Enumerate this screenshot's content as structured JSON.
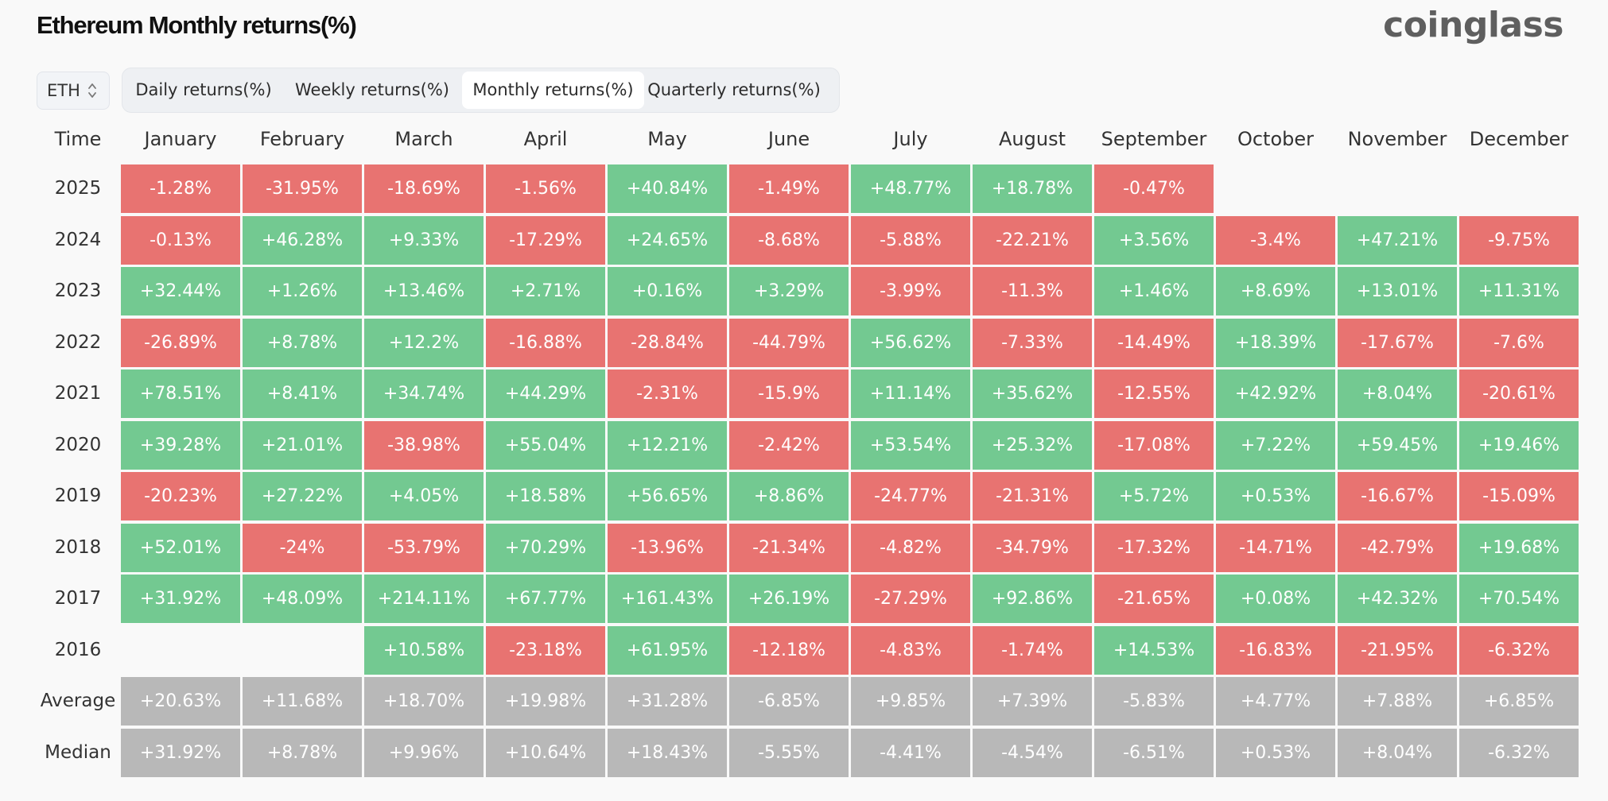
{
  "header": {
    "title": "Ethereum Monthly returns(%)",
    "brand": "coinglass"
  },
  "symbol_select": {
    "value": "ETH"
  },
  "tabs": [
    {
      "label": "Daily returns(%)",
      "active": false
    },
    {
      "label": "Weekly returns(%)",
      "active": false
    },
    {
      "label": "Monthly returns(%)",
      "active": true
    },
    {
      "label": "Quarterly returns(%)",
      "active": false
    }
  ],
  "colors": {
    "positive": "#73c991",
    "negative": "#e87371",
    "stat": "#b8b8b8"
  },
  "chart_data": {
    "type": "heatmap",
    "corner_label": "Time",
    "columns": [
      "January",
      "February",
      "March",
      "April",
      "May",
      "June",
      "July",
      "August",
      "September",
      "October",
      "November",
      "December"
    ],
    "rows": [
      {
        "label": "2025",
        "values": [
          "-1.28%",
          "-31.95%",
          "-18.69%",
          "-1.56%",
          "+40.84%",
          "-1.49%",
          "+48.77%",
          "+18.78%",
          "-0.47%",
          null,
          null,
          null
        ]
      },
      {
        "label": "2024",
        "values": [
          "-0.13%",
          "+46.28%",
          "+9.33%",
          "-17.29%",
          "+24.65%",
          "-8.68%",
          "-5.88%",
          "-22.21%",
          "+3.56%",
          "-3.4%",
          "+47.21%",
          "-9.75%"
        ]
      },
      {
        "label": "2023",
        "values": [
          "+32.44%",
          "+1.26%",
          "+13.46%",
          "+2.71%",
          "+0.16%",
          "+3.29%",
          "-3.99%",
          "-11.3%",
          "+1.46%",
          "+8.69%",
          "+13.01%",
          "+11.31%"
        ]
      },
      {
        "label": "2022",
        "values": [
          "-26.89%",
          "+8.78%",
          "+12.2%",
          "-16.88%",
          "-28.84%",
          "-44.79%",
          "+56.62%",
          "-7.33%",
          "-14.49%",
          "+18.39%",
          "-17.67%",
          "-7.6%"
        ]
      },
      {
        "label": "2021",
        "values": [
          "+78.51%",
          "+8.41%",
          "+34.74%",
          "+44.29%",
          "-2.31%",
          "-15.9%",
          "+11.14%",
          "+35.62%",
          "-12.55%",
          "+42.92%",
          "+8.04%",
          "-20.61%"
        ]
      },
      {
        "label": "2020",
        "values": [
          "+39.28%",
          "+21.01%",
          "-38.98%",
          "+55.04%",
          "+12.21%",
          "-2.42%",
          "+53.54%",
          "+25.32%",
          "-17.08%",
          "+7.22%",
          "+59.45%",
          "+19.46%"
        ]
      },
      {
        "label": "2019",
        "values": [
          "-20.23%",
          "+27.22%",
          "+4.05%",
          "+18.58%",
          "+56.65%",
          "+8.86%",
          "-24.77%",
          "-21.31%",
          "+5.72%",
          "+0.53%",
          "-16.67%",
          "-15.09%"
        ]
      },
      {
        "label": "2018",
        "values": [
          "+52.01%",
          "-24%",
          "-53.79%",
          "+70.29%",
          "-13.96%",
          "-21.34%",
          "-4.82%",
          "-34.79%",
          "-17.32%",
          "-14.71%",
          "-42.79%",
          "+19.68%"
        ]
      },
      {
        "label": "2017",
        "values": [
          "+31.92%",
          "+48.09%",
          "+214.11%",
          "+67.77%",
          "+161.43%",
          "+26.19%",
          "-27.29%",
          "+92.86%",
          "-21.65%",
          "+0.08%",
          "+42.32%",
          "+70.54%"
        ]
      },
      {
        "label": "2016",
        "values": [
          null,
          null,
          "+10.58%",
          "-23.18%",
          "+61.95%",
          "-12.18%",
          "-4.83%",
          "-1.74%",
          "+14.53%",
          "-16.83%",
          "-21.95%",
          "-6.32%"
        ]
      }
    ],
    "stats": [
      {
        "label": "Average",
        "values": [
          "+20.63%",
          "+11.68%",
          "+18.70%",
          "+19.98%",
          "+31.28%",
          "-6.85%",
          "+9.85%",
          "+7.39%",
          "-5.83%",
          "+4.77%",
          "+7.88%",
          "+6.85%"
        ]
      },
      {
        "label": "Median",
        "values": [
          "+31.92%",
          "+8.78%",
          "+9.96%",
          "+10.64%",
          "+18.43%",
          "-5.55%",
          "-4.41%",
          "-4.54%",
          "-6.51%",
          "+0.53%",
          "+8.04%",
          "-6.32%"
        ]
      }
    ]
  }
}
